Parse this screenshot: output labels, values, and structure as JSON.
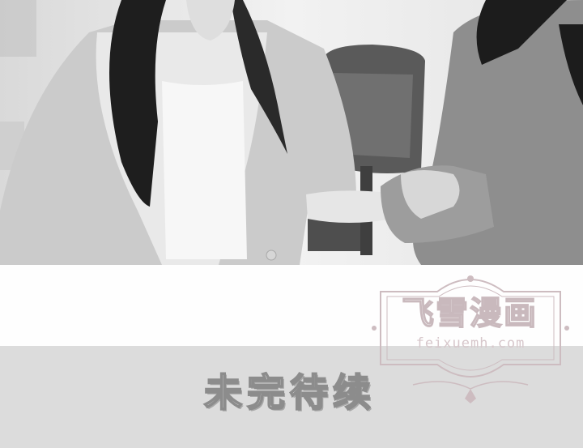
{
  "panel": {
    "end_caption": "未完待续"
  },
  "watermark": {
    "title": "飞雪漫画",
    "url": "feixuemh.com",
    "color": "#cdbcc0"
  },
  "colors": {
    "band_gray": "#dcdcdc",
    "band_white": "#fefefe",
    "caption_stroke": "#8c8c8c"
  }
}
